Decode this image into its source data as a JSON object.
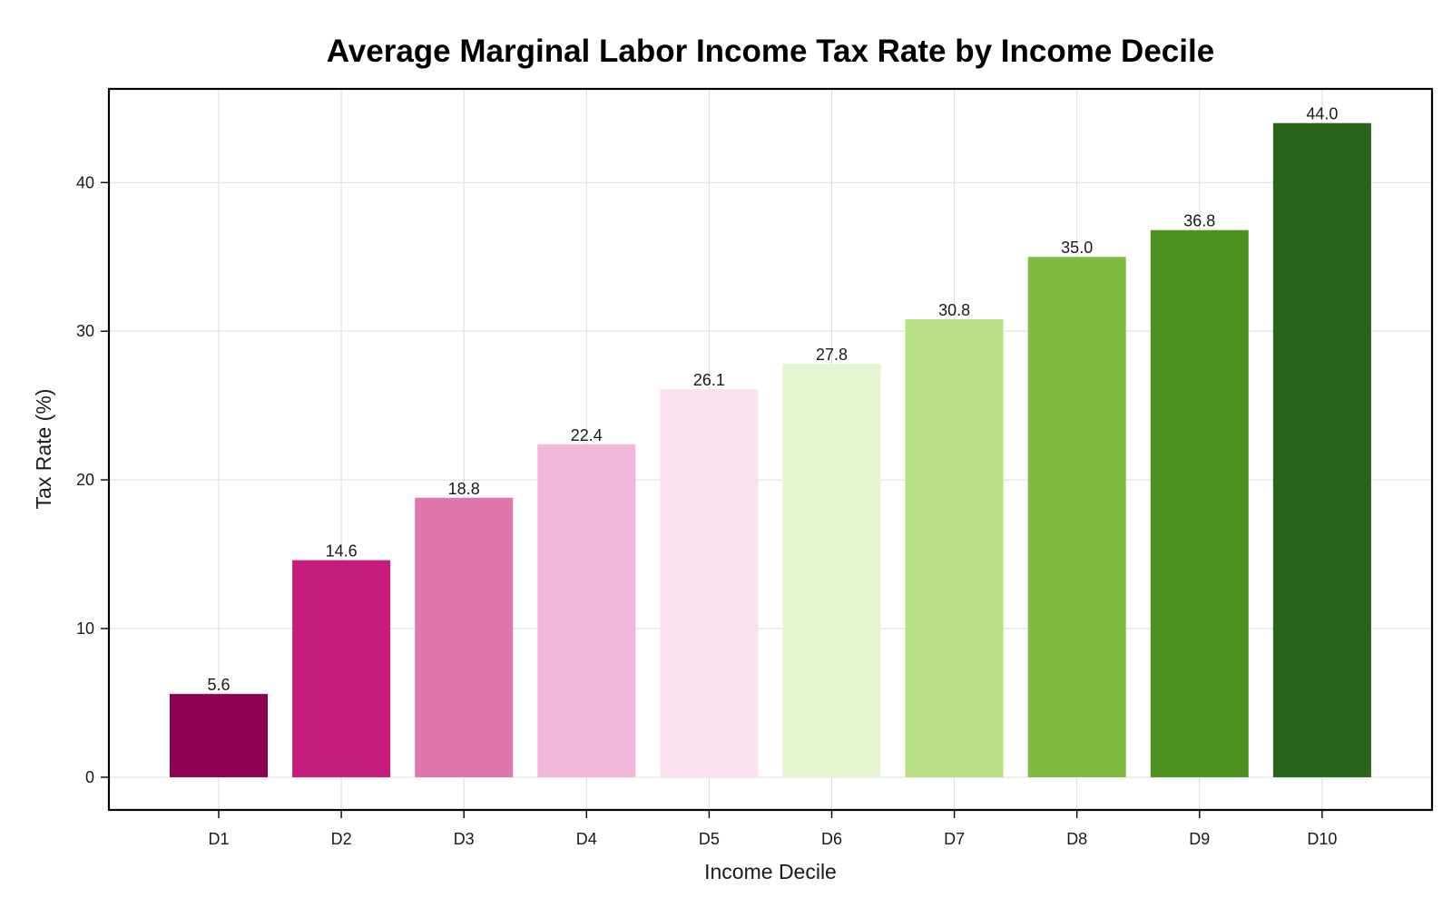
{
  "chart_data": {
    "type": "bar",
    "title": "Average Marginal Labor Income Tax Rate by Income Decile",
    "xlabel": "Income Decile",
    "ylabel": "Tax Rate (%)",
    "categories": [
      "D1",
      "D2",
      "D3",
      "D4",
      "D5",
      "D6",
      "D7",
      "D8",
      "D9",
      "D10"
    ],
    "values": [
      5.6,
      14.6,
      18.8,
      22.4,
      26.1,
      27.8,
      30.8,
      35.0,
      36.8,
      44.0
    ],
    "value_labels": [
      "5.6",
      "14.6",
      "18.8",
      "22.4",
      "26.1",
      "27.8",
      "30.8",
      "35.0",
      "36.8",
      "44.0"
    ],
    "colors": [
      "#8e0152",
      "#c51b7d",
      "#de77ae",
      "#f1b6da",
      "#fde0ef",
      "#e6f5d0",
      "#b8e186",
      "#7fbc41",
      "#4d9221",
      "#276419"
    ],
    "ylim": [
      -2.2,
      46.3
    ],
    "yticks": [
      0,
      10,
      20,
      30,
      40
    ],
    "ytick_labels": [
      "0",
      "10",
      "20",
      "30",
      "40"
    ],
    "grid": true,
    "legend": "none"
  }
}
